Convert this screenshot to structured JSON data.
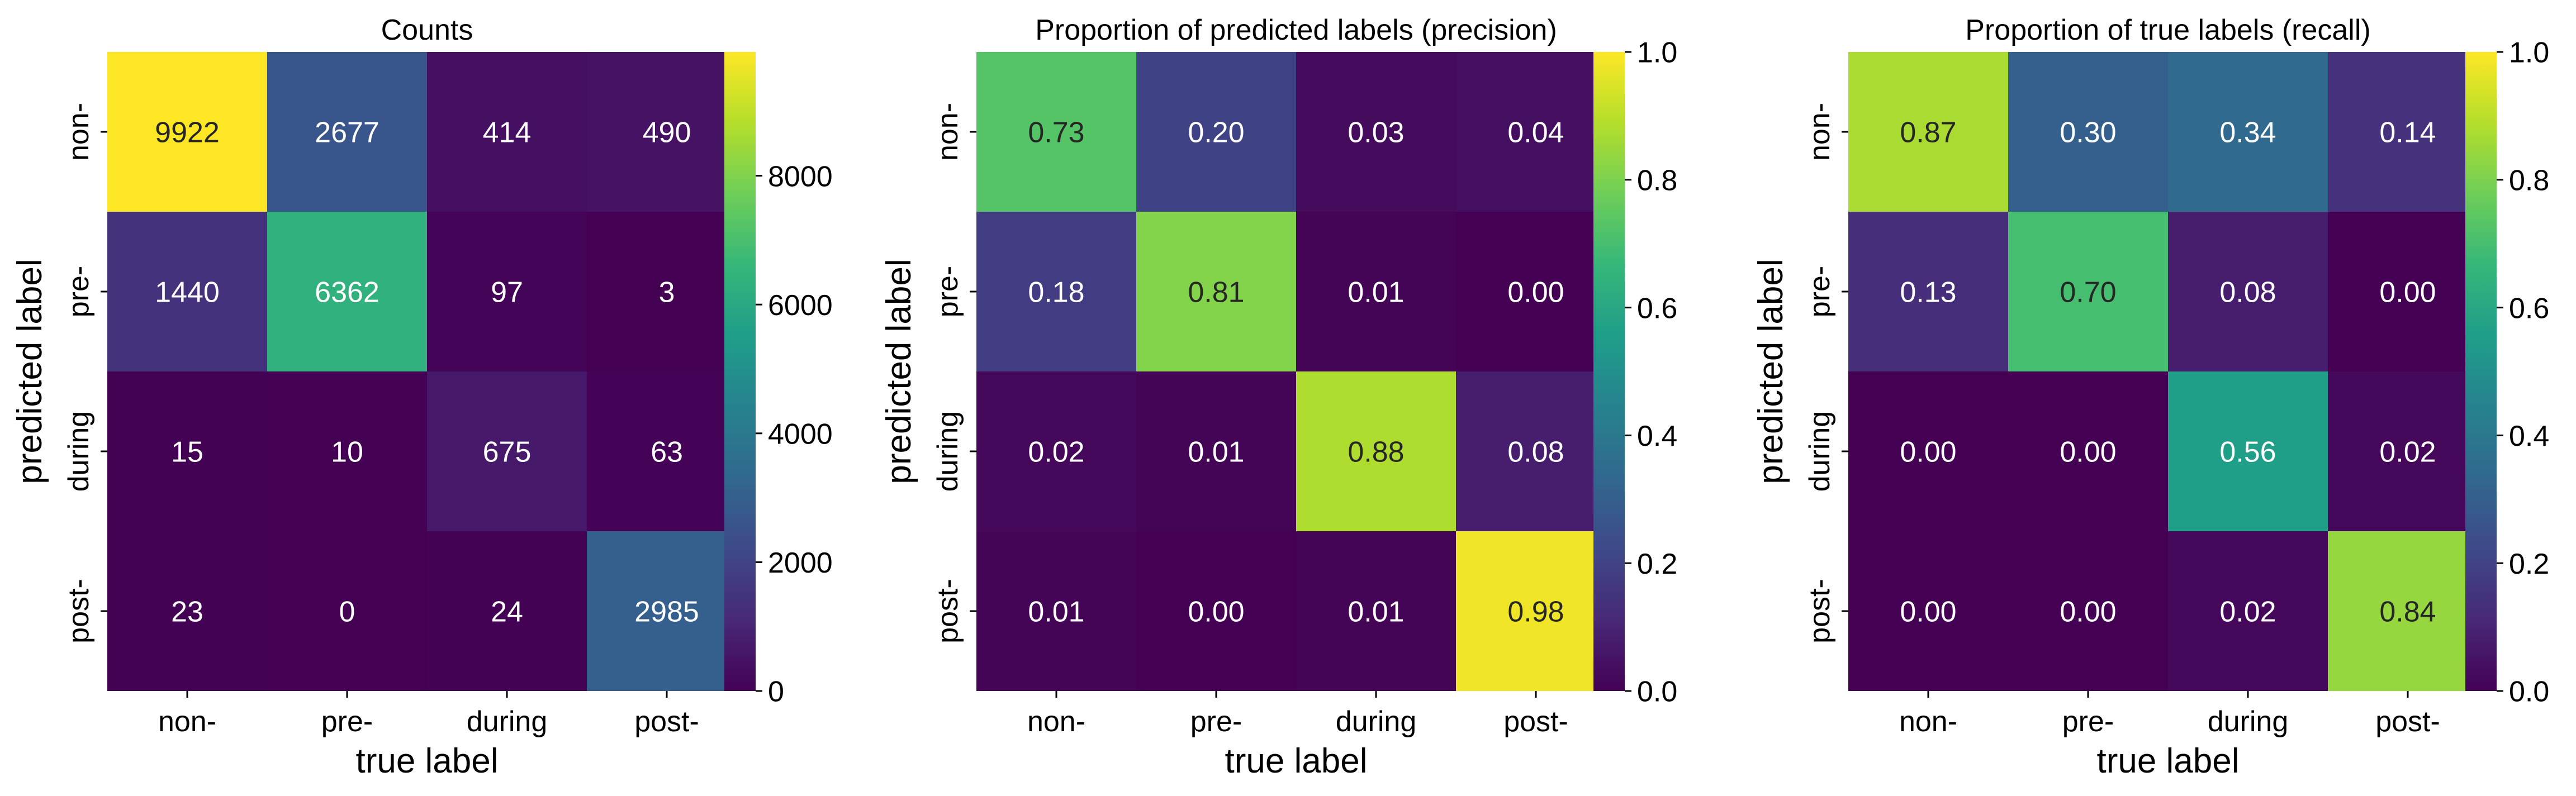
{
  "chart_data": [
    {
      "type": "heatmap",
      "title": "Counts",
      "xlabel": "true label",
      "ylabel": "predicted label",
      "x_categories": [
        "non-",
        "pre-",
        "during",
        "post-"
      ],
      "y_categories": [
        "non-",
        "pre-",
        "during",
        "post-"
      ],
      "values": [
        [
          9922,
          2677,
          414,
          490
        ],
        [
          1440,
          6362,
          97,
          3
        ],
        [
          15,
          10,
          675,
          63
        ],
        [
          23,
          0,
          24,
          2985
        ]
      ],
      "cell_labels": [
        [
          "9922",
          "2677",
          "414",
          "490"
        ],
        [
          "1440",
          "6362",
          "97",
          "3"
        ],
        [
          "15",
          "10",
          "675",
          "63"
        ],
        [
          "23",
          "0",
          "24",
          "2985"
        ]
      ],
      "vmin": 0,
      "vmax": 9922,
      "colormap": "viridis",
      "colorbar_ticks": [
        0,
        2000,
        4000,
        6000,
        8000
      ],
      "colorbar_tick_labels": [
        "0",
        "2000",
        "4000",
        "6000",
        "8000"
      ]
    },
    {
      "type": "heatmap",
      "title": "Proportion of predicted labels (precision)",
      "xlabel": "true label",
      "ylabel": "predicted label",
      "x_categories": [
        "non-",
        "pre-",
        "during",
        "post-"
      ],
      "y_categories": [
        "non-",
        "pre-",
        "during",
        "post-"
      ],
      "values": [
        [
          0.73,
          0.2,
          0.03,
          0.04
        ],
        [
          0.18,
          0.81,
          0.01,
          0.0
        ],
        [
          0.02,
          0.01,
          0.88,
          0.08
        ],
        [
          0.01,
          0.0,
          0.01,
          0.98
        ]
      ],
      "cell_labels": [
        [
          "0.73",
          "0.20",
          "0.03",
          "0.04"
        ],
        [
          "0.18",
          "0.81",
          "0.01",
          "0.00"
        ],
        [
          "0.02",
          "0.01",
          "0.88",
          "0.08"
        ],
        [
          "0.01",
          "0.00",
          "0.01",
          "0.98"
        ]
      ],
      "vmin": 0,
      "vmax": 1.0,
      "colormap": "viridis",
      "colorbar_ticks": [
        0,
        0.2,
        0.4,
        0.6,
        0.8,
        1.0
      ],
      "colorbar_tick_labels": [
        "0.0",
        "0.2",
        "0.4",
        "0.6",
        "0.8",
        "1.0"
      ]
    },
    {
      "type": "heatmap",
      "title": "Proportion of true labels (recall)",
      "xlabel": "true label",
      "ylabel": "predicted label",
      "x_categories": [
        "non-",
        "pre-",
        "during",
        "post-"
      ],
      "y_categories": [
        "non-",
        "pre-",
        "during",
        "post-"
      ],
      "values": [
        [
          0.87,
          0.3,
          0.34,
          0.14
        ],
        [
          0.13,
          0.7,
          0.08,
          0.0
        ],
        [
          0.0,
          0.0,
          0.56,
          0.02
        ],
        [
          0.0,
          0.0,
          0.02,
          0.84
        ]
      ],
      "cell_labels": [
        [
          "0.87",
          "0.30",
          "0.34",
          "0.14"
        ],
        [
          "0.13",
          "0.70",
          "0.08",
          "0.00"
        ],
        [
          "0.00",
          "0.00",
          "0.56",
          "0.02"
        ],
        [
          "0.00",
          "0.00",
          "0.02",
          "0.84"
        ]
      ],
      "vmin": 0,
      "vmax": 1.0,
      "colormap": "viridis",
      "colorbar_ticks": [
        0,
        0.2,
        0.4,
        0.6,
        0.8,
        1.0
      ],
      "colorbar_tick_labels": [
        "0.0",
        "0.2",
        "0.4",
        "0.6",
        "0.8",
        "1.0"
      ]
    }
  ]
}
